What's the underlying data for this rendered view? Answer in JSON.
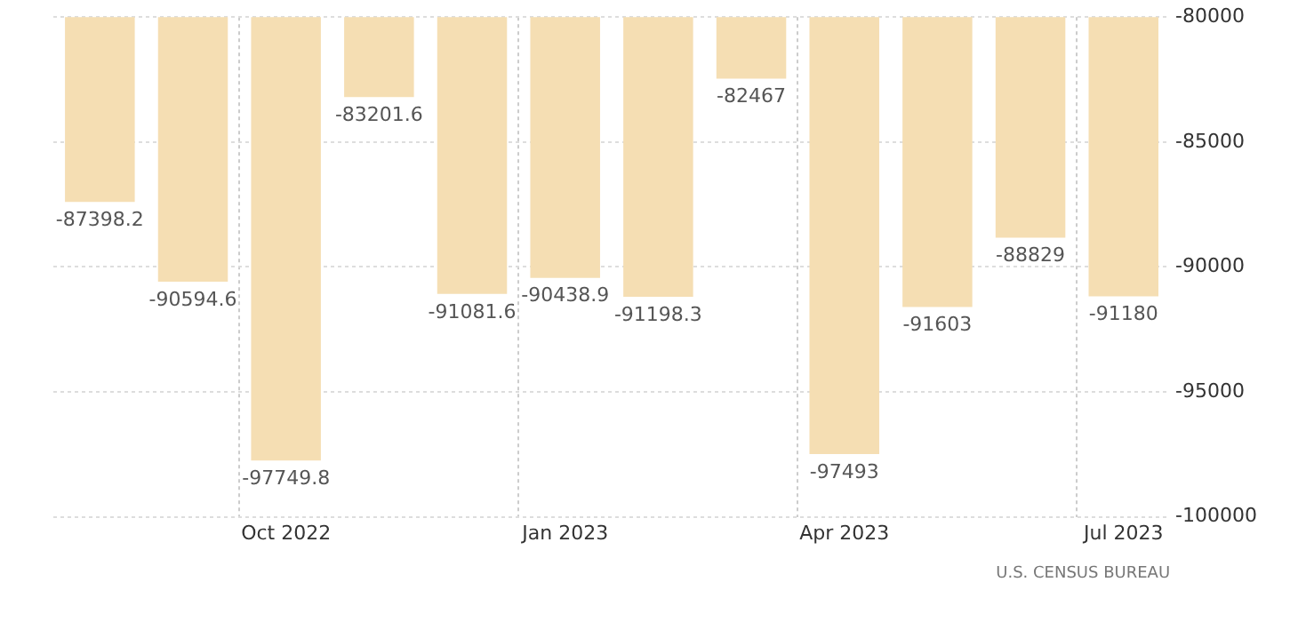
{
  "chart_data": {
    "type": "bar",
    "categories": [
      null,
      null,
      "Oct 2022",
      null,
      null,
      "Jan 2023",
      null,
      null,
      "Apr 2023",
      null,
      null,
      "Jul 2023"
    ],
    "values": [
      -87398.2,
      -90594.6,
      -97749.8,
      -83201.6,
      -91081.6,
      -90438.9,
      -91198.3,
      -82467,
      -97493,
      -91603,
      -88829,
      -91180
    ],
    "color": "#f5deb3",
    "ylim": [
      -100000,
      -80000
    ],
    "yticks": [
      -100000,
      -95000,
      -90000,
      -85000,
      -80000
    ],
    "grid": true,
    "data_labels": true,
    "annotations": [
      "U.S. CENSUS BUREAU"
    ]
  }
}
